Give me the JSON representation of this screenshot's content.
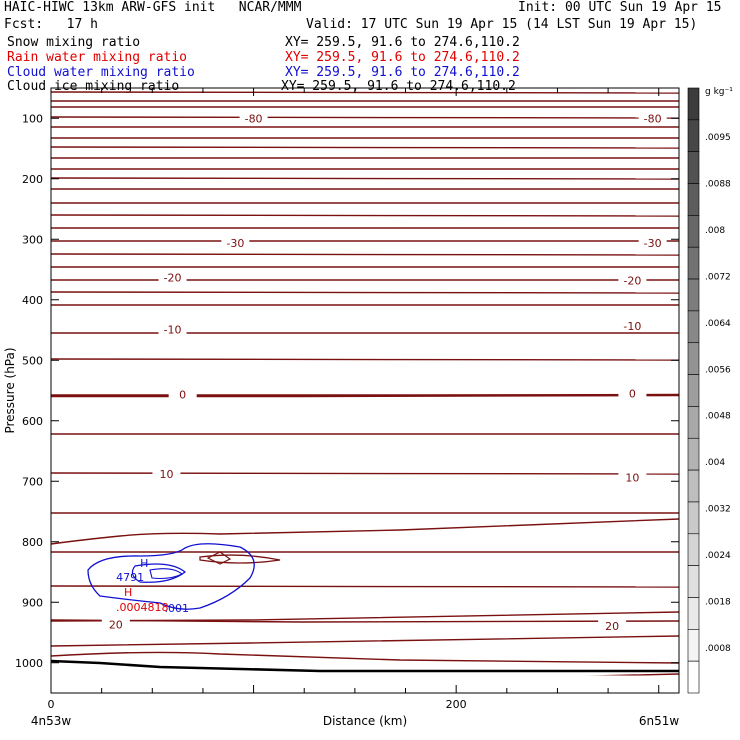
{
  "header": {
    "title_left": "HAIC-HIWC 13km ARW-GFS init   NCAR/MMM",
    "init": "Init: 00 UTC Sun 19 Apr 15",
    "fcst": "Fcst:   17 h",
    "valid": "Valid: 17 UTC Sun 19 Apr 15 (14 LST Sun 19 Apr 15)",
    "fields": [
      {
        "name": "Snow mixing ratio",
        "xy": "XY= 259.5, 91.6 to 274.6,110.2",
        "color": "#000000"
      },
      {
        "name": "Rain water mixing ratio",
        "xy": "XY= 259.5, 91.6 to 274.6,110.2",
        "color": "#e00000"
      },
      {
        "name": "Cloud water mixing ratio",
        "xy": "XY= 259.5, 91.6 to 274.6,110.2",
        "color": "#1010d0"
      },
      {
        "name": "Cloud ice mixing ratio",
        "xy": "XY= 259.5, 91.6 to 274.6,110.2",
        "color": "#000000"
      }
    ]
  },
  "chart_data": {
    "type": "contour-cross-section",
    "xlabel": "Distance (km)",
    "ylabel": "Pressure (hPa)",
    "xlim": [
      0,
      310
    ],
    "ylim": [
      1050,
      50
    ],
    "x_ticks": [
      0,
      200
    ],
    "y_ticks": [
      100,
      200,
      300,
      400,
      500,
      600,
      700,
      800,
      900,
      1000
    ],
    "x_end_labels": {
      "left": "4n53w",
      "right": "6n51w"
    },
    "temperature_labels": [
      {
        "text": "-80",
        "x": 100,
        "p": 100
      },
      {
        "text": "-80",
        "x": 297,
        "p": 100
      },
      {
        "text": "-30",
        "x": 91,
        "p": 306
      },
      {
        "text": "-30",
        "x": 297,
        "p": 306
      },
      {
        "text": "-20",
        "x": 60,
        "p": 363
      },
      {
        "text": "-20",
        "x": 287,
        "p": 368
      },
      {
        "text": "-10",
        "x": 60,
        "p": 449
      },
      {
        "text": "-10",
        "x": 287,
        "p": 443
      },
      {
        "text": "0",
        "x": 65,
        "p": 557
      },
      {
        "text": "0",
        "x": 287,
        "p": 555
      },
      {
        "text": "10",
        "x": 57,
        "p": 688
      },
      {
        "text": "10",
        "x": 287,
        "p": 694
      },
      {
        "text": "20",
        "x": 32,
        "p": 937
      },
      {
        "text": "20",
        "x": 277,
        "p": 939
      }
    ],
    "cloud_water_max": {
      "label": "H",
      "value": "4791",
      "x": 45,
      "p": 852
    },
    "cloud_water_contour": {
      "value": ".001",
      "x": 60,
      "p": 895
    },
    "rain_water_max": {
      "label": "H",
      "value": ".0004818",
      "x": 38,
      "p": 870
    },
    "colorbar": {
      "unit": "g kg⁻¹",
      "labels": [
        ".0095",
        ".0088",
        ".008",
        ".0072",
        ".0064",
        ".0056",
        ".0048",
        ".004",
        ".0032",
        ".0024",
        ".0018",
        ".0008"
      ]
    }
  }
}
